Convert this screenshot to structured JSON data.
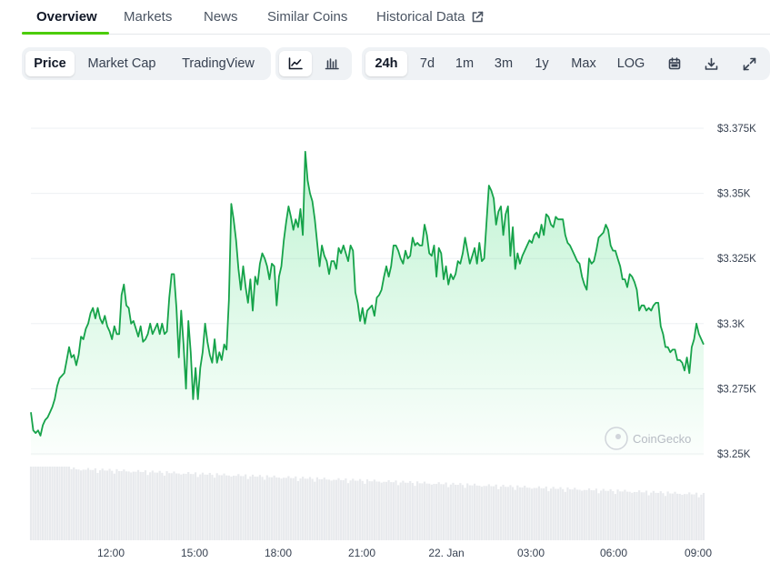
{
  "top_tabs": [
    {
      "label": "Overview",
      "active": true
    },
    {
      "label": "Markets"
    },
    {
      "label": "News"
    },
    {
      "label": "Similar Coins"
    },
    {
      "label": "Historical Data",
      "icon": "external-link-icon"
    }
  ],
  "chart_type_tabs": [
    {
      "label": "Price",
      "selected": true
    },
    {
      "label": "Market Cap"
    },
    {
      "label": "TradingView"
    }
  ],
  "view_icons": [
    {
      "icon": "line-chart-icon",
      "selected": true
    },
    {
      "icon": "candlestick-icon"
    }
  ],
  "range_tabs": [
    {
      "label": "24h",
      "selected": true
    },
    {
      "label": "7d"
    },
    {
      "label": "1m"
    },
    {
      "label": "3m"
    },
    {
      "label": "1y"
    },
    {
      "label": "Max"
    },
    {
      "label": "LOG"
    }
  ],
  "tool_icons": [
    "calendar-icon",
    "download-icon",
    "fullscreen-icon"
  ],
  "colors": {
    "accent": "#4bcc00",
    "line": "#16a34a",
    "area": "#dcf5e3",
    "volume": "#e5e7eb"
  },
  "watermark": "CoinGecko",
  "chart_data": {
    "type": "area",
    "y_ticks": [
      {
        "value": 3375,
        "label": "$3.375K"
      },
      {
        "value": 3350,
        "label": "$3.35K"
      },
      {
        "value": 3325,
        "label": "$3.325K"
      },
      {
        "value": 3300,
        "label": "$3.3K"
      },
      {
        "value": 3275,
        "label": "$3.275K"
      },
      {
        "value": 3250,
        "label": "$3.25K"
      }
    ],
    "x_ticks": [
      "12:00",
      "15:00",
      "18:00",
      "21:00",
      "22. Jan",
      "03:00",
      "06:00",
      "09:00"
    ],
    "ylim": [
      3250,
      3375
    ],
    "grid": true,
    "price": [
      3266,
      3259,
      3258,
      3259,
      3257,
      3261,
      3263,
      3264,
      3266,
      3268,
      3271,
      3276,
      3279,
      3280,
      3281,
      3286,
      3291,
      3287,
      3288,
      3284,
      3288,
      3295,
      3294,
      3298,
      3300,
      3304,
      3306,
      3302,
      3306,
      3302,
      3300,
      3303,
      3299,
      3297,
      3294,
      3299,
      3296,
      3296,
      3311,
      3315,
      3307,
      3306,
      3300,
      3301,
      3298,
      3295,
      3299,
      3293,
      3294,
      3296,
      3300,
      3296,
      3298,
      3300,
      3296,
      3300,
      3296,
      3297,
      3310,
      3319,
      3319,
      3306,
      3287,
      3305,
      3292,
      3275,
      3301,
      3289,
      3271,
      3283,
      3271,
      3283,
      3289,
      3300,
      3293,
      3288,
      3285,
      3294,
      3285,
      3289,
      3286,
      3292,
      3290,
      3309,
      3346,
      3340,
      3332,
      3321,
      3313,
      3322,
      3314,
      3308,
      3317,
      3305,
      3318,
      3315,
      3323,
      3327,
      3325,
      3322,
      3317,
      3323,
      3322,
      3307,
      3318,
      3322,
      3332,
      3339,
      3345,
      3341,
      3336,
      3340,
      3337,
      3344,
      3334,
      3366,
      3355,
      3350,
      3347,
      3340,
      3331,
      3322,
      3330,
      3326,
      3324,
      3319,
      3324,
      3324,
      3321,
      3329,
      3327,
      3330,
      3327,
      3324,
      3330,
      3328,
      3312,
      3308,
      3301,
      3306,
      3300,
      3305,
      3306,
      3307,
      3303,
      3310,
      3311,
      3313,
      3318,
      3322,
      3318,
      3322,
      3330,
      3330,
      3328,
      3325,
      3323,
      3328,
      3325,
      3326,
      3333,
      3330,
      3331,
      3330,
      3330,
      3338,
      3334,
      3327,
      3326,
      3330,
      3318,
      3329,
      3327,
      3317,
      3322,
      3315,
      3319,
      3317,
      3319,
      3324,
      3323,
      3327,
      3333,
      3328,
      3323,
      3326,
      3329,
      3323,
      3331,
      3324,
      3325,
      3339,
      3353,
      3351,
      3348,
      3338,
      3343,
      3345,
      3334,
      3342,
      3345,
      3326,
      3337,
      3321,
      3327,
      3323,
      3326,
      3328,
      3330,
      3332,
      3331,
      3334,
      3335,
      3333,
      3338,
      3334,
      3342,
      3341,
      3338,
      3337,
      3341,
      3340,
      3340,
      3340,
      3334,
      3331,
      3330,
      3328,
      3326,
      3324,
      3323,
      3318,
      3315,
      3313,
      3325,
      3323,
      3324,
      3328,
      3333,
      3334,
      3335,
      3338,
      3336,
      3330,
      3328,
      3328,
      3325,
      3322,
      3317,
      3317,
      3314,
      3319,
      3318,
      3316,
      3313,
      3305,
      3307,
      3307,
      3305,
      3306,
      3305,
      3307,
      3308,
      3308,
      3299,
      3296,
      3291,
      3291,
      3289,
      3290,
      3290,
      3286,
      3286,
      3285,
      3282,
      3287,
      3281,
      3291,
      3294,
      3300,
      3296,
      3294,
      3292
    ]
  }
}
